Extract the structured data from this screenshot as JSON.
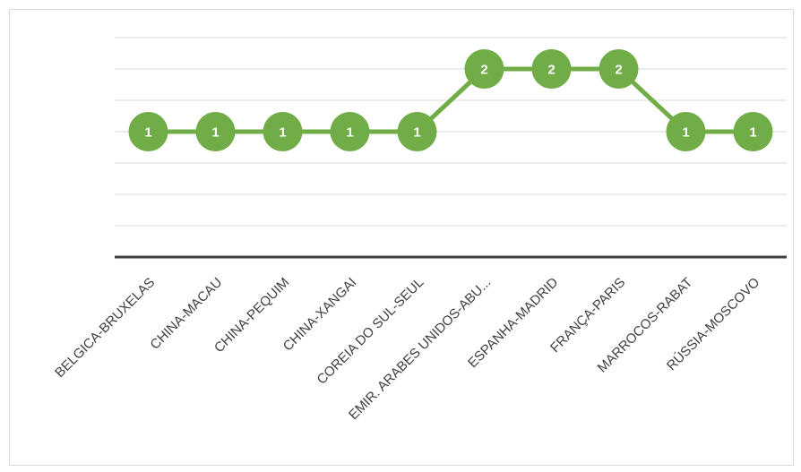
{
  "chart_data": {
    "type": "line",
    "categories": [
      "BELGICA-BRUXELAS",
      "CHINA-MACAU",
      "CHINA-PEQUIM",
      "CHINA-XANGAI",
      "COREIA DO SUL-SEUL",
      "EMIR. ARABES UNIDOS-ABU...",
      "ESPANHA-MADRID",
      "FRANÇA-PARIS",
      "MARROCOS-RABAT",
      "RÚSSIA-MOSCOVO"
    ],
    "series": [
      {
        "values": [
          1,
          1,
          1,
          1,
          1,
          2,
          2,
          2,
          1,
          1
        ]
      }
    ],
    "ylim": [
      -1,
      2.5
    ],
    "grid": true,
    "legend": "none",
    "data_labels": true,
    "colors": {
      "line": "#70ad47",
      "marker": "#70ad47",
      "marker_label": "#ffffff",
      "grid": "#d9d9d9",
      "axis": "#404040",
      "tick_text": "#404040"
    }
  }
}
